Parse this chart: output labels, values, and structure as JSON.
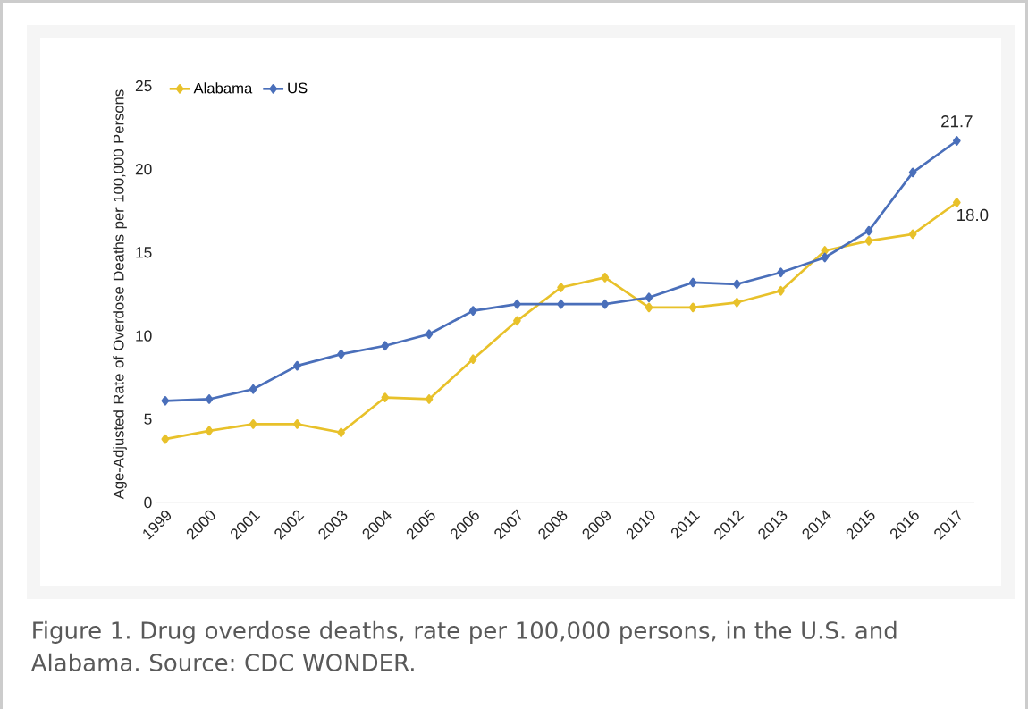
{
  "chart_data": {
    "type": "line",
    "categories": [
      "1999",
      "2000",
      "2001",
      "2002",
      "2003",
      "2004",
      "2005",
      "2006",
      "2007",
      "2008",
      "2009",
      "2010",
      "2011",
      "2012",
      "2013",
      "2014",
      "2015",
      "2016",
      "2017"
    ],
    "ylabel": "Age-Adjusted Rate of Overdose Deaths per 100,000 Persons",
    "series": [
      {
        "name": "Alabama",
        "color": "#e8c12a",
        "values": [
          3.8,
          4.3,
          4.7,
          4.7,
          4.2,
          6.3,
          6.2,
          8.6,
          10.9,
          12.9,
          13.5,
          11.7,
          11.7,
          12.0,
          12.7,
          15.1,
          15.7,
          16.1,
          18.0
        ],
        "value_labels": [
          null,
          null,
          null,
          null,
          null,
          null,
          null,
          null,
          null,
          null,
          null,
          null,
          null,
          null,
          null,
          null,
          null,
          null,
          "18.0"
        ]
      },
      {
        "name": "US",
        "color": "#4a6fba",
        "values": [
          6.1,
          6.2,
          6.8,
          8.2,
          8.9,
          9.4,
          10.1,
          11.5,
          11.9,
          11.9,
          11.9,
          12.3,
          13.2,
          13.1,
          13.8,
          14.7,
          16.3,
          19.8,
          21.7
        ],
        "value_labels": [
          null,
          null,
          null,
          null,
          null,
          null,
          null,
          null,
          null,
          null,
          null,
          null,
          null,
          null,
          null,
          null,
          null,
          null,
          "21.7"
        ]
      }
    ],
    "ylim": [
      0,
      25
    ],
    "yticks": [
      0,
      5,
      10,
      15,
      20,
      25
    ],
    "grid": false,
    "legend": "top left",
    "marker": "diamond",
    "line_style": "solid",
    "annotations": [
      "Figure 1. Drug overdose deaths, rate per 100,000 persons, in the U.S. and Alabama. Source: CDC WONDER."
    ]
  }
}
